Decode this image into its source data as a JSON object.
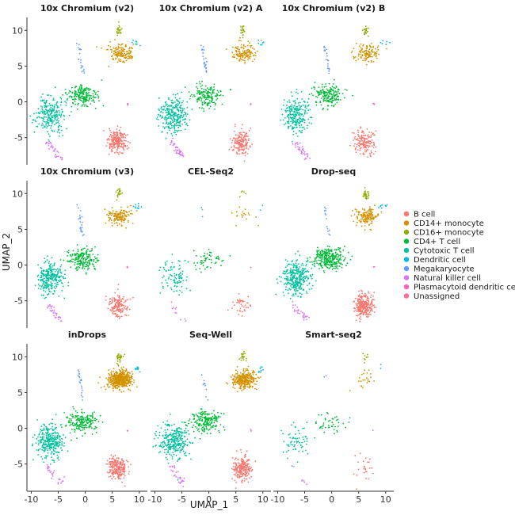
{
  "chart_data": {
    "type": "scatter",
    "xlabel": "UMAP_1",
    "ylabel": "UMAP_2",
    "xlim": [
      -10.8,
      11.5
    ],
    "ylim": [
      -8.8,
      11.8
    ],
    "x_ticks": [
      -10,
      -5,
      0,
      5,
      10
    ],
    "y_ticks": [
      -5,
      0,
      5,
      10
    ],
    "x_tick_labels": [
      "-10",
      "-5",
      "0",
      "5",
      "10"
    ],
    "y_tick_labels": [
      "-5",
      "0",
      "5",
      "10"
    ],
    "grid": false,
    "legend_position": "right",
    "legend": [
      {
        "name": "B cell",
        "color": "#F8766D"
      },
      {
        "name": "CD14+ monocyte",
        "color": "#D39200"
      },
      {
        "name": "CD16+ monocyte",
        "color": "#93AA00"
      },
      {
        "name": "CD4+ T cell",
        "color": "#00BA38"
      },
      {
        "name": "Cytotoxic T cell",
        "color": "#00C19F"
      },
      {
        "name": "Dendritic cell",
        "color": "#00B9E3"
      },
      {
        "name": "Megakaryocyte",
        "color": "#619CFF"
      },
      {
        "name": "Natural killer cell",
        "color": "#DB72FB"
      },
      {
        "name": "Plasmacytoid dendritic cell",
        "color": "#FF61C3"
      },
      {
        "name": "Unassigned",
        "color": "#FF6C91"
      }
    ],
    "clusters": [
      {
        "name": "B cell",
        "shape": "ellipse",
        "center": [
          6.0,
          -5.6
        ],
        "spread": [
          1.6,
          1.5
        ]
      },
      {
        "name": "CD14+ monocyte",
        "shape": "ellipse",
        "center": [
          6.5,
          6.8
        ],
        "spread": [
          2.0,
          1.1
        ]
      },
      {
        "name": "CD16+ monocyte",
        "shape": "ellipse",
        "center": [
          6.3,
          9.9
        ],
        "spread": [
          0.5,
          0.7
        ]
      },
      {
        "name": "CD4+ T cell",
        "shape": "ellipse",
        "center": [
          -0.5,
          0.9
        ],
        "spread": [
          2.6,
          1.4
        ]
      },
      {
        "name": "Cytotoxic T cell",
        "shape": "ellipse",
        "center": [
          -6.5,
          -1.8
        ],
        "spread": [
          2.3,
          2.2
        ]
      },
      {
        "name": "Dendritic cell",
        "shape": "ellipse",
        "center": [
          9.5,
          8.2
        ],
        "spread": [
          0.8,
          0.4
        ]
      },
      {
        "name": "Megakaryocyte",
        "shape": "streak",
        "from": [
          -1.3,
          8.1
        ],
        "to": [
          -0.4,
          4.0
        ],
        "width": 0.35
      },
      {
        "name": "Natural killer cell",
        "shape": "streak",
        "from": [
          -7.0,
          -5.5
        ],
        "to": [
          -4.5,
          -7.8
        ],
        "width": 0.55
      },
      {
        "name": "Plasmacytoid dendritic cell",
        "shape": "ellipse",
        "center": [
          7.8,
          -0.3
        ],
        "spread": [
          0.15,
          0.12
        ]
      }
    ],
    "panels": [
      {
        "title": "10x Chromium (v2)",
        "weights": [
          220,
          150,
          25,
          190,
          260,
          8,
          20,
          35,
          3
        ]
      },
      {
        "title": "10x Chromium (v2) A",
        "weights": [
          160,
          130,
          22,
          170,
          280,
          6,
          25,
          40,
          3
        ]
      },
      {
        "title": "10x Chromium (v2) B",
        "weights": [
          160,
          120,
          22,
          180,
          240,
          6,
          22,
          35,
          3
        ]
      },
      {
        "title": "10x Chromium (v3)",
        "weights": [
          150,
          140,
          20,
          200,
          270,
          10,
          22,
          30,
          3
        ]
      },
      {
        "title": "CEL-Seq2",
        "weights": [
          40,
          18,
          5,
          55,
          90,
          2,
          3,
          10,
          1
        ]
      },
      {
        "title": "Drop-seq",
        "weights": [
          260,
          150,
          30,
          300,
          320,
          8,
          14,
          30,
          4
        ]
      },
      {
        "title": "inDrops",
        "weights": [
          230,
          500,
          30,
          200,
          300,
          12,
          20,
          30,
          3
        ]
      },
      {
        "title": "Seq-Well",
        "weights": [
          220,
          300,
          20,
          200,
          300,
          8,
          10,
          30,
          3
        ]
      },
      {
        "title": "Smart-seq2",
        "weights": [
          25,
          22,
          8,
          45,
          65,
          2,
          2,
          6,
          1
        ]
      }
    ]
  }
}
